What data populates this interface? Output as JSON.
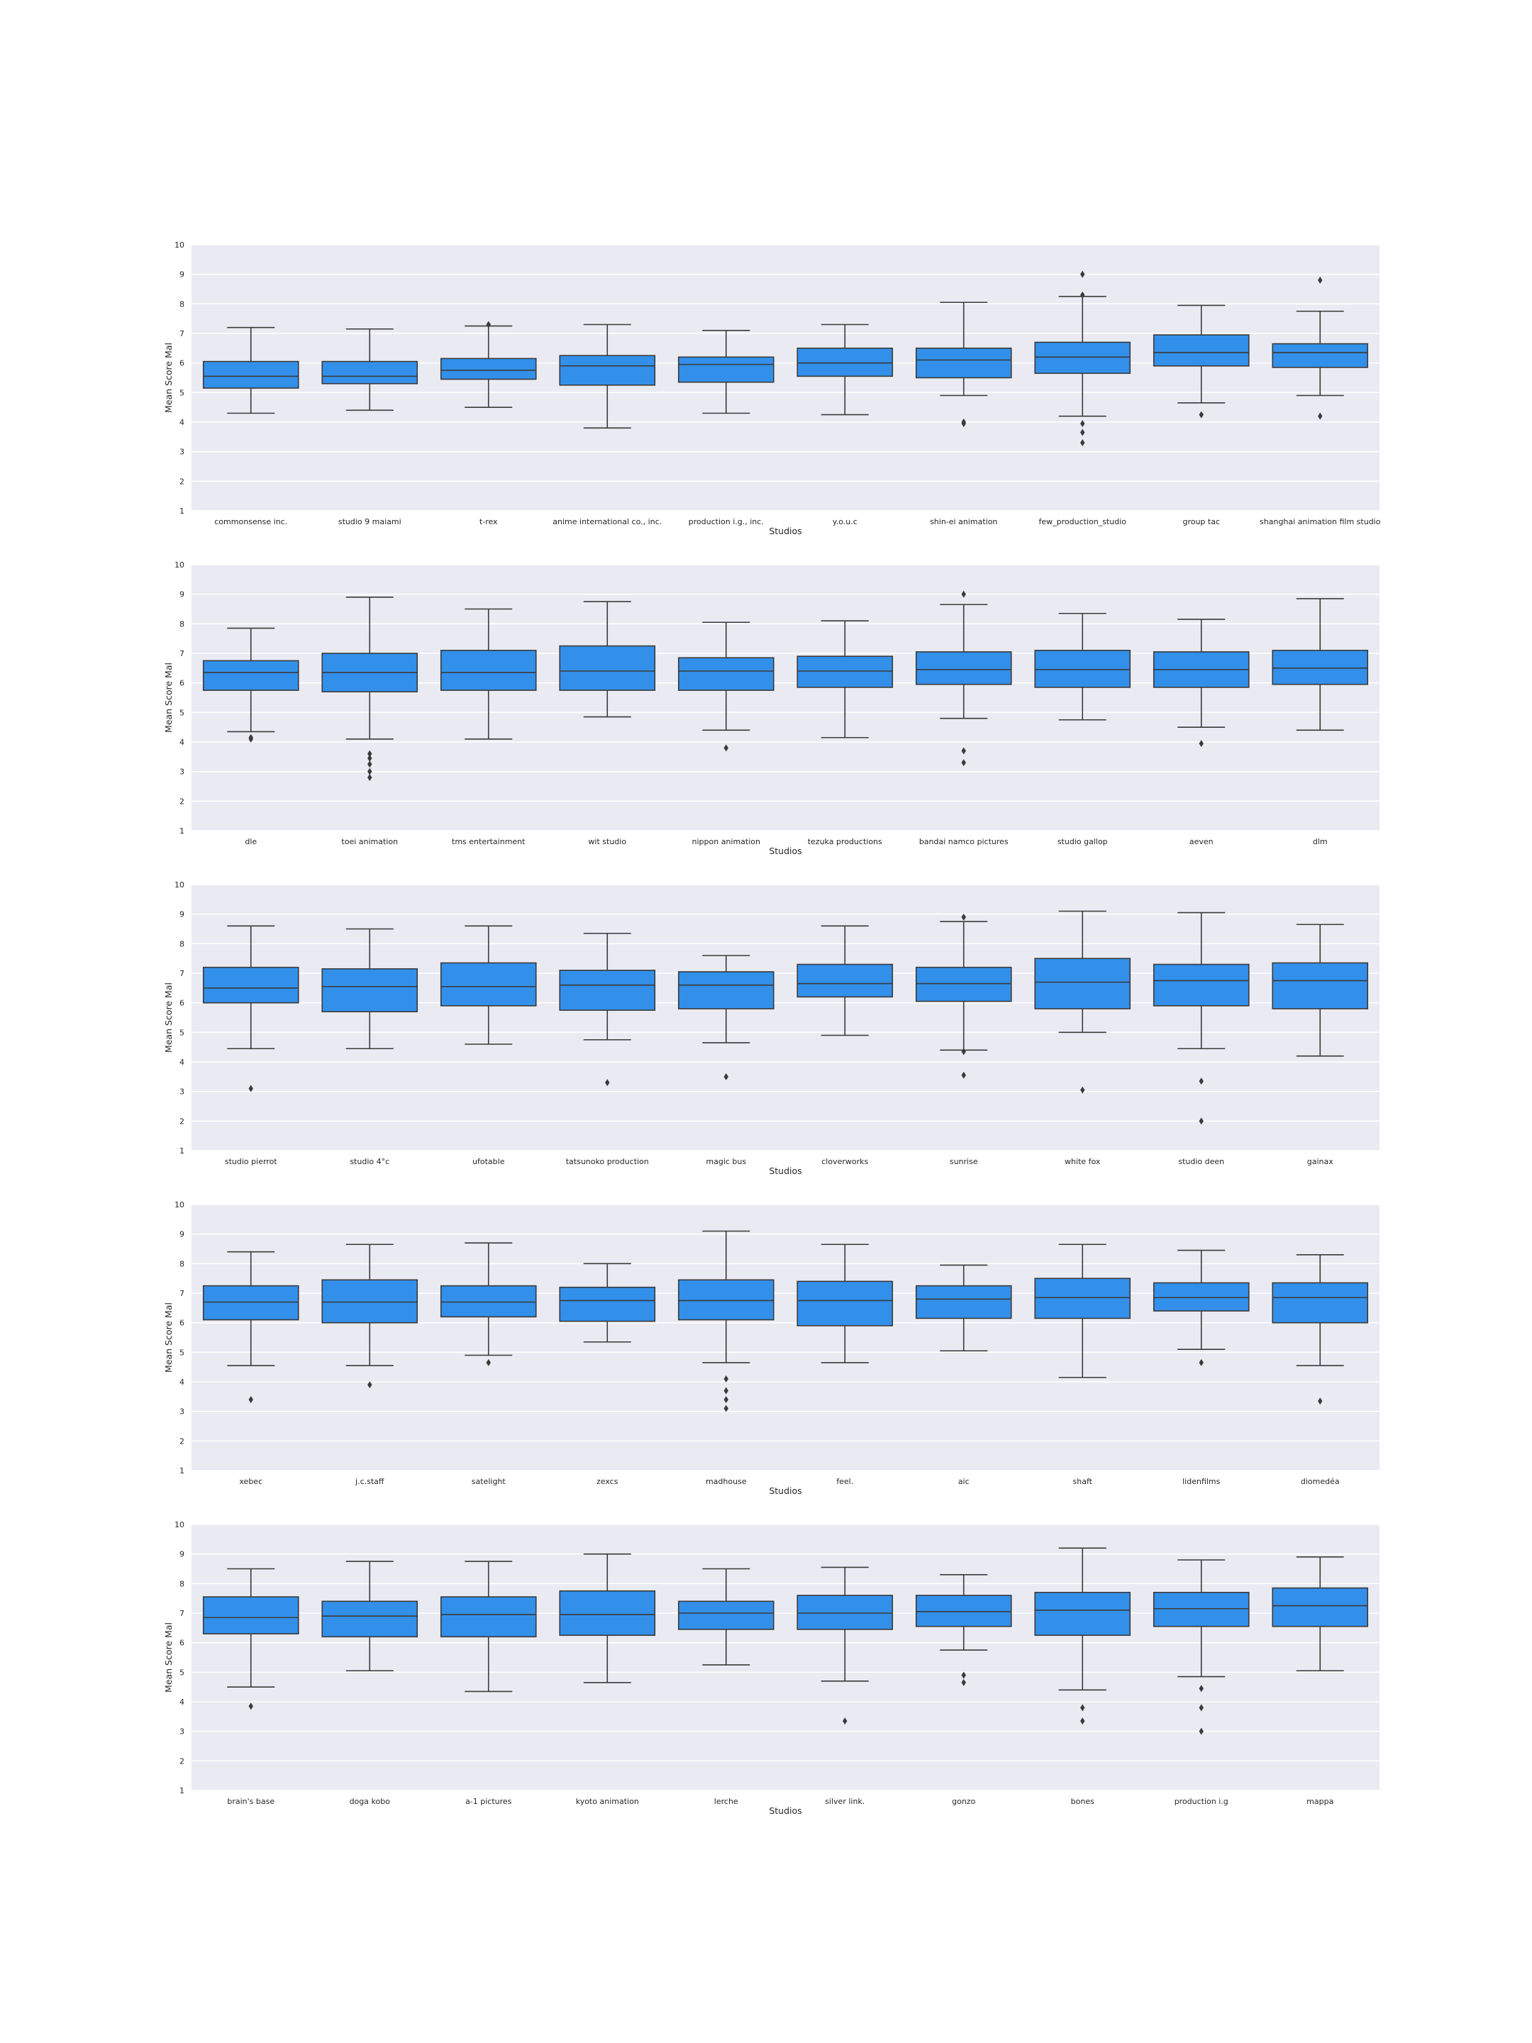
{
  "chart_data": {
    "type": "box",
    "ylim": [
      1,
      10
    ],
    "y_ticks": [
      "1",
      "2",
      "3",
      "4",
      "5",
      "6",
      "7",
      "8",
      "9",
      "10"
    ],
    "grid": true,
    "legend": "none",
    "colors": {
      "box": "#3390ea",
      "panel": "#eaeaf2",
      "line": "#3a3a3a",
      "grid": "#ffffff"
    },
    "panels": [
      {
        "xlabel": "Studios",
        "ylabel": "Mean Score Mal",
        "boxes": [
          {
            "category": "commonsense inc.",
            "whisker_low": 4.3,
            "q1": 5.15,
            "median": 5.55,
            "q3": 6.05,
            "whisker_high": 7.2,
            "outliers": []
          },
          {
            "category": "studio 9 maiami",
            "whisker_low": 4.4,
            "q1": 5.3,
            "median": 5.55,
            "q3": 6.05,
            "whisker_high": 7.15,
            "outliers": []
          },
          {
            "category": "t-rex",
            "whisker_low": 4.5,
            "q1": 5.45,
            "median": 5.75,
            "q3": 6.15,
            "whisker_high": 7.25,
            "outliers": [
              7.3
            ]
          },
          {
            "category": "anime international co., inc.",
            "whisker_low": 3.8,
            "q1": 5.25,
            "median": 5.9,
            "q3": 6.25,
            "whisker_high": 7.3,
            "outliers": []
          },
          {
            "category": "production i.g., inc.",
            "whisker_low": 4.3,
            "q1": 5.35,
            "median": 5.95,
            "q3": 6.2,
            "whisker_high": 7.1,
            "outliers": []
          },
          {
            "category": "y.o.u.c",
            "whisker_low": 4.25,
            "q1": 5.55,
            "median": 6.0,
            "q3": 6.5,
            "whisker_high": 7.3,
            "outliers": []
          },
          {
            "category": "shin-ei animation",
            "whisker_low": 4.9,
            "q1": 5.5,
            "median": 6.1,
            "q3": 6.5,
            "whisker_high": 8.05,
            "outliers": [
              4.0,
              3.95
            ]
          },
          {
            "category": "few_production_studio",
            "whisker_low": 4.2,
            "q1": 5.65,
            "median": 6.2,
            "q3": 6.7,
            "whisker_high": 8.25,
            "outliers": [
              9.0,
              8.3,
              3.95,
              3.65,
              3.3
            ]
          },
          {
            "category": "group tac",
            "whisker_low": 4.65,
            "q1": 5.9,
            "median": 6.35,
            "q3": 6.95,
            "whisker_high": 7.95,
            "outliers": [
              4.25
            ]
          },
          {
            "category": "shanghai animation film studio",
            "whisker_low": 4.9,
            "q1": 5.85,
            "median": 6.35,
            "q3": 6.65,
            "whisker_high": 7.75,
            "outliers": [
              8.8,
              4.2
            ]
          }
        ]
      },
      {
        "xlabel": "Studios",
        "ylabel": "Mean Score Mal",
        "boxes": [
          {
            "category": "dle",
            "whisker_low": 4.35,
            "q1": 5.75,
            "median": 6.35,
            "q3": 6.75,
            "whisker_high": 7.85,
            "outliers": [
              4.15,
              4.1
            ]
          },
          {
            "category": "toei animation",
            "whisker_low": 4.1,
            "q1": 5.7,
            "median": 6.35,
            "q3": 7.0,
            "whisker_high": 8.9,
            "outliers": [
              3.6,
              3.45,
              3.25,
              3.0,
              2.8
            ]
          },
          {
            "category": "tms entertainment",
            "whisker_low": 4.1,
            "q1": 5.75,
            "median": 6.35,
            "q3": 7.1,
            "whisker_high": 8.5,
            "outliers": []
          },
          {
            "category": "wit studio",
            "whisker_low": 4.85,
            "q1": 5.75,
            "median": 6.4,
            "q3": 7.25,
            "whisker_high": 8.75,
            "outliers": []
          },
          {
            "category": "nippon animation",
            "whisker_low": 4.4,
            "q1": 5.75,
            "median": 6.4,
            "q3": 6.85,
            "whisker_high": 8.05,
            "outliers": [
              3.8
            ]
          },
          {
            "category": "tezuka productions",
            "whisker_low": 4.15,
            "q1": 5.85,
            "median": 6.4,
            "q3": 6.9,
            "whisker_high": 8.1,
            "outliers": []
          },
          {
            "category": "bandai namco pictures",
            "whisker_low": 4.8,
            "q1": 5.95,
            "median": 6.45,
            "q3": 7.05,
            "whisker_high": 8.65,
            "outliers": [
              9.0,
              3.7,
              3.3
            ]
          },
          {
            "category": "studio gallop",
            "whisker_low": 4.75,
            "q1": 5.85,
            "median": 6.45,
            "q3": 7.1,
            "whisker_high": 8.35,
            "outliers": []
          },
          {
            "category": "aeven",
            "whisker_low": 4.5,
            "q1": 5.85,
            "median": 6.45,
            "q3": 7.05,
            "whisker_high": 8.15,
            "outliers": [
              3.95
            ]
          },
          {
            "category": "dlm",
            "whisker_low": 4.4,
            "q1": 5.95,
            "median": 6.5,
            "q3": 7.1,
            "whisker_high": 8.85,
            "outliers": []
          }
        ]
      },
      {
        "xlabel": "Studios",
        "ylabel": "Mean Score Mal",
        "boxes": [
          {
            "category": "studio pierrot",
            "whisker_low": 4.45,
            "q1": 6.0,
            "median": 6.5,
            "q3": 7.2,
            "whisker_high": 8.6,
            "outliers": [
              3.1
            ]
          },
          {
            "category": "studio 4°c",
            "whisker_low": 4.45,
            "q1": 5.7,
            "median": 6.55,
            "q3": 7.15,
            "whisker_high": 8.5,
            "outliers": []
          },
          {
            "category": "ufotable",
            "whisker_low": 4.6,
            "q1": 5.9,
            "median": 6.55,
            "q3": 7.35,
            "whisker_high": 8.6,
            "outliers": []
          },
          {
            "category": "tatsunoko production",
            "whisker_low": 4.75,
            "q1": 5.75,
            "median": 6.6,
            "q3": 7.1,
            "whisker_high": 8.35,
            "outliers": [
              3.3
            ]
          },
          {
            "category": "magic bus",
            "whisker_low": 4.65,
            "q1": 5.8,
            "median": 6.6,
            "q3": 7.05,
            "whisker_high": 7.6,
            "outliers": [
              3.5
            ]
          },
          {
            "category": "cloverworks",
            "whisker_low": 4.9,
            "q1": 6.2,
            "median": 6.65,
            "q3": 7.3,
            "whisker_high": 8.6,
            "outliers": []
          },
          {
            "category": "sunrise",
            "whisker_low": 4.4,
            "q1": 6.05,
            "median": 6.65,
            "q3": 7.2,
            "whisker_high": 8.75,
            "outliers": [
              8.9,
              4.35,
              3.55
            ]
          },
          {
            "category": "white fox",
            "whisker_low": 5.0,
            "q1": 5.8,
            "median": 6.7,
            "q3": 7.5,
            "whisker_high": 9.1,
            "outliers": [
              3.05
            ]
          },
          {
            "category": "studio deen",
            "whisker_low": 4.45,
            "q1": 5.9,
            "median": 6.75,
            "q3": 7.3,
            "whisker_high": 9.05,
            "outliers": [
              3.35,
              2.0
            ]
          },
          {
            "category": "gainax",
            "whisker_low": 4.2,
            "q1": 5.8,
            "median": 6.75,
            "q3": 7.35,
            "whisker_high": 8.65,
            "outliers": []
          }
        ]
      },
      {
        "xlabel": "Studios",
        "ylabel": "Mean Score Mal",
        "boxes": [
          {
            "category": "xebec",
            "whisker_low": 4.55,
            "q1": 6.1,
            "median": 6.7,
            "q3": 7.25,
            "whisker_high": 8.4,
            "outliers": [
              3.4
            ]
          },
          {
            "category": "j.c.staff",
            "whisker_low": 4.55,
            "q1": 6.0,
            "median": 6.7,
            "q3": 7.45,
            "whisker_high": 8.65,
            "outliers": [
              3.9
            ]
          },
          {
            "category": "satelight",
            "whisker_low": 4.9,
            "q1": 6.2,
            "median": 6.7,
            "q3": 7.25,
            "whisker_high": 8.7,
            "outliers": [
              4.65
            ]
          },
          {
            "category": "zexcs",
            "whisker_low": 5.35,
            "q1": 6.05,
            "median": 6.75,
            "q3": 7.2,
            "whisker_high": 8.0,
            "outliers": []
          },
          {
            "category": "madhouse",
            "whisker_low": 4.65,
            "q1": 6.1,
            "median": 6.75,
            "q3": 7.45,
            "whisker_high": 9.1,
            "outliers": [
              4.1,
              3.7,
              3.4,
              3.1
            ]
          },
          {
            "category": "feel.",
            "whisker_low": 4.65,
            "q1": 5.9,
            "median": 6.75,
            "q3": 7.4,
            "whisker_high": 8.65,
            "outliers": []
          },
          {
            "category": "aic",
            "whisker_low": 5.05,
            "q1": 6.15,
            "median": 6.8,
            "q3": 7.25,
            "whisker_high": 7.95,
            "outliers": []
          },
          {
            "category": "shaft",
            "whisker_low": 4.15,
            "q1": 6.15,
            "median": 6.85,
            "q3": 7.5,
            "whisker_high": 8.65,
            "outliers": []
          },
          {
            "category": "lidenfilms",
            "whisker_low": 5.1,
            "q1": 6.4,
            "median": 6.85,
            "q3": 7.35,
            "whisker_high": 8.45,
            "outliers": [
              4.65
            ]
          },
          {
            "category": "diomedéa",
            "whisker_low": 4.55,
            "q1": 6.0,
            "median": 6.85,
            "q3": 7.35,
            "whisker_high": 8.3,
            "outliers": [
              3.35
            ]
          }
        ]
      },
      {
        "xlabel": "Studios",
        "ylabel": "Mean Score Mal",
        "boxes": [
          {
            "category": "brain's base",
            "whisker_low": 4.5,
            "q1": 6.3,
            "median": 6.85,
            "q3": 7.55,
            "whisker_high": 8.5,
            "outliers": [
              3.85
            ]
          },
          {
            "category": "doga kobo",
            "whisker_low": 5.05,
            "q1": 6.2,
            "median": 6.9,
            "q3": 7.4,
            "whisker_high": 8.75,
            "outliers": []
          },
          {
            "category": "a-1 pictures",
            "whisker_low": 4.35,
            "q1": 6.2,
            "median": 6.95,
            "q3": 7.55,
            "whisker_high": 8.75,
            "outliers": []
          },
          {
            "category": "kyoto animation",
            "whisker_low": 4.65,
            "q1": 6.25,
            "median": 6.95,
            "q3": 7.75,
            "whisker_high": 9.0,
            "outliers": []
          },
          {
            "category": "lerche",
            "whisker_low": 5.25,
            "q1": 6.45,
            "median": 7.0,
            "q3": 7.4,
            "whisker_high": 8.5,
            "outliers": []
          },
          {
            "category": "silver link.",
            "whisker_low": 4.7,
            "q1": 6.45,
            "median": 7.0,
            "q3": 7.6,
            "whisker_high": 8.55,
            "outliers": [
              3.35
            ]
          },
          {
            "category": "gonzo",
            "whisker_low": 5.75,
            "q1": 6.55,
            "median": 7.05,
            "q3": 7.6,
            "whisker_high": 8.3,
            "outliers": [
              4.9,
              4.65
            ]
          },
          {
            "category": "bones",
            "whisker_low": 4.4,
            "q1": 6.25,
            "median": 7.1,
            "q3": 7.7,
            "whisker_high": 9.2,
            "outliers": [
              3.8,
              3.35
            ]
          },
          {
            "category": "production i.g",
            "whisker_low": 4.85,
            "q1": 6.55,
            "median": 7.15,
            "q3": 7.7,
            "whisker_high": 8.8,
            "outliers": [
              4.45,
              3.8,
              3.0
            ]
          },
          {
            "category": "mappa",
            "whisker_low": 5.05,
            "q1": 6.55,
            "median": 7.25,
            "q3": 7.85,
            "whisker_high": 8.9,
            "outliers": []
          }
        ]
      }
    ]
  }
}
